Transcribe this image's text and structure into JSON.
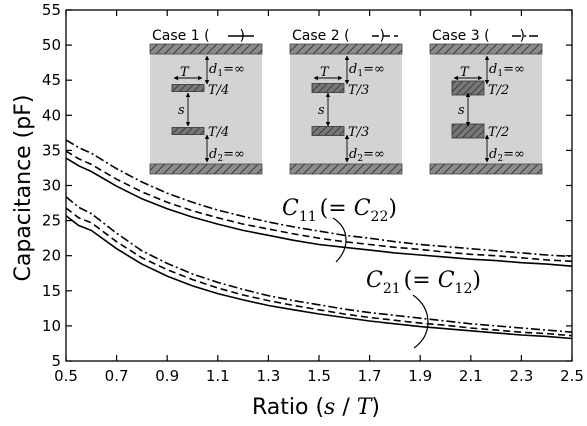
{
  "chart_data": {
    "type": "line",
    "xlabel_prefix": "Ratio (",
    "xlabel_var_s": "s",
    "xlabel_slash": " / ",
    "xlabel_var_T": "T",
    "xlabel_suffix": ")",
    "ylabel": "Capacitance (pF)",
    "xlim": [
      0.5,
      2.5
    ],
    "ylim": [
      5,
      55
    ],
    "xticks": [
      "0.5",
      "0.7",
      "0.9",
      "1.1",
      "1.3",
      "1.5",
      "1.7",
      "1.9",
      "2.1",
      "2.3",
      "2.5"
    ],
    "yticks": [
      "5",
      "10",
      "15",
      "20",
      "25",
      "30",
      "35",
      "40",
      "45",
      "50",
      "55"
    ],
    "x": [
      0.5,
      0.55,
      0.6,
      0.7,
      0.8,
      0.9,
      1.0,
      1.1,
      1.2,
      1.3,
      1.4,
      1.5,
      1.6,
      1.7,
      1.8,
      1.9,
      2.0,
      2.1,
      2.2,
      2.3,
      2.4,
      2.5
    ],
    "series": [
      {
        "group": "C11",
        "case": "Case 1",
        "style": "solid",
        "values": [
          33.9,
          32.8,
          32.0,
          29.9,
          28.1,
          26.7,
          25.5,
          24.5,
          23.6,
          22.9,
          22.2,
          21.6,
          21.2,
          20.8,
          20.4,
          20.1,
          19.8,
          19.5,
          19.3,
          19.0,
          18.8,
          18.5
        ]
      },
      {
        "group": "C11",
        "case": "Case 2",
        "style": "dashed",
        "values": [
          34.9,
          33.8,
          33.0,
          30.9,
          29.1,
          27.6,
          26.4,
          25.4,
          24.5,
          23.8,
          23.1,
          22.5,
          22.0,
          21.6,
          21.2,
          20.9,
          20.5,
          20.2,
          20.0,
          19.7,
          19.4,
          19.2
        ]
      },
      {
        "group": "C11",
        "case": "Case 3",
        "style": "dashdot",
        "values": [
          36.5,
          35.4,
          34.6,
          32.4,
          30.5,
          28.9,
          27.6,
          26.5,
          25.6,
          24.8,
          24.1,
          23.5,
          22.9,
          22.5,
          22.0,
          21.6,
          21.3,
          21.0,
          20.7,
          20.4,
          20.1,
          19.9
        ]
      },
      {
        "group": "C21",
        "case": "Case 1",
        "style": "solid",
        "values": [
          25.7,
          24.3,
          23.6,
          21.0,
          18.8,
          17.1,
          15.7,
          14.6,
          13.7,
          12.9,
          12.3,
          11.7,
          11.2,
          10.7,
          10.3,
          9.9,
          9.6,
          9.3,
          9.0,
          8.7,
          8.5,
          8.2
        ]
      },
      {
        "group": "C21",
        "case": "Case 2",
        "style": "dashed",
        "values": [
          26.8,
          25.4,
          24.7,
          22.0,
          19.7,
          18.0,
          16.6,
          15.4,
          14.4,
          13.6,
          12.9,
          12.3,
          11.7,
          11.2,
          10.8,
          10.4,
          10.1,
          9.7,
          9.4,
          9.1,
          8.9,
          8.6
        ]
      },
      {
        "group": "C21",
        "case": "Case 3",
        "style": "dashdot",
        "values": [
          28.4,
          26.9,
          26.0,
          23.2,
          20.7,
          18.9,
          17.4,
          16.2,
          15.2,
          14.3,
          13.6,
          13.0,
          12.4,
          11.9,
          11.5,
          11.1,
          10.7,
          10.3,
          10.0,
          9.7,
          9.4,
          9.1
        ]
      }
    ],
    "annotations": {
      "c11_label": {
        "C": "C",
        "sub1": "11",
        "eq": "(= ",
        "C2": "C",
        "sub2": "22",
        "close": ")"
      },
      "c21_label": {
        "C": "C",
        "sub1": "21",
        "eq": "(= ",
        "C2": "C",
        "sub2": "12",
        "close": ")"
      }
    },
    "insets": [
      {
        "title": "Case 1 (",
        "line_style": "solid",
        "close": ")",
        "T": "T",
        "d1": "d",
        "d1sub": "1",
        "d1val": "=∞",
        "frac_top": "T/4",
        "s": "s",
        "frac_bot": "T/4",
        "d2": "d",
        "d2sub": "2",
        "d2val": "=∞"
      },
      {
        "title": "Case 2 (",
        "line_style": "dashed",
        "close": ")",
        "T": "T",
        "d1": "d",
        "d1sub": "1",
        "d1val": "=∞",
        "frac_top": "T/3",
        "s": "s",
        "frac_bot": "T/3",
        "d2": "d",
        "d2sub": "2",
        "d2val": "=∞"
      },
      {
        "title": "Case 3 (",
        "line_style": "dashdot",
        "close": ")",
        "T": "T",
        "d1": "d",
        "d1sub": "1",
        "d1val": "=∞",
        "frac_top": "T/2",
        "s": "s",
        "frac_bot": "T/2",
        "d2": "d",
        "d2sub": "2",
        "d2val": "=∞"
      }
    ],
    "colors": {
      "line": "#000000",
      "inset_bg": "#d3d3d3",
      "hatch_bg": "#8c8c8c",
      "conductor": "#6e6e6e"
    },
    "grid": false,
    "legend": "inset-schematics-top"
  }
}
